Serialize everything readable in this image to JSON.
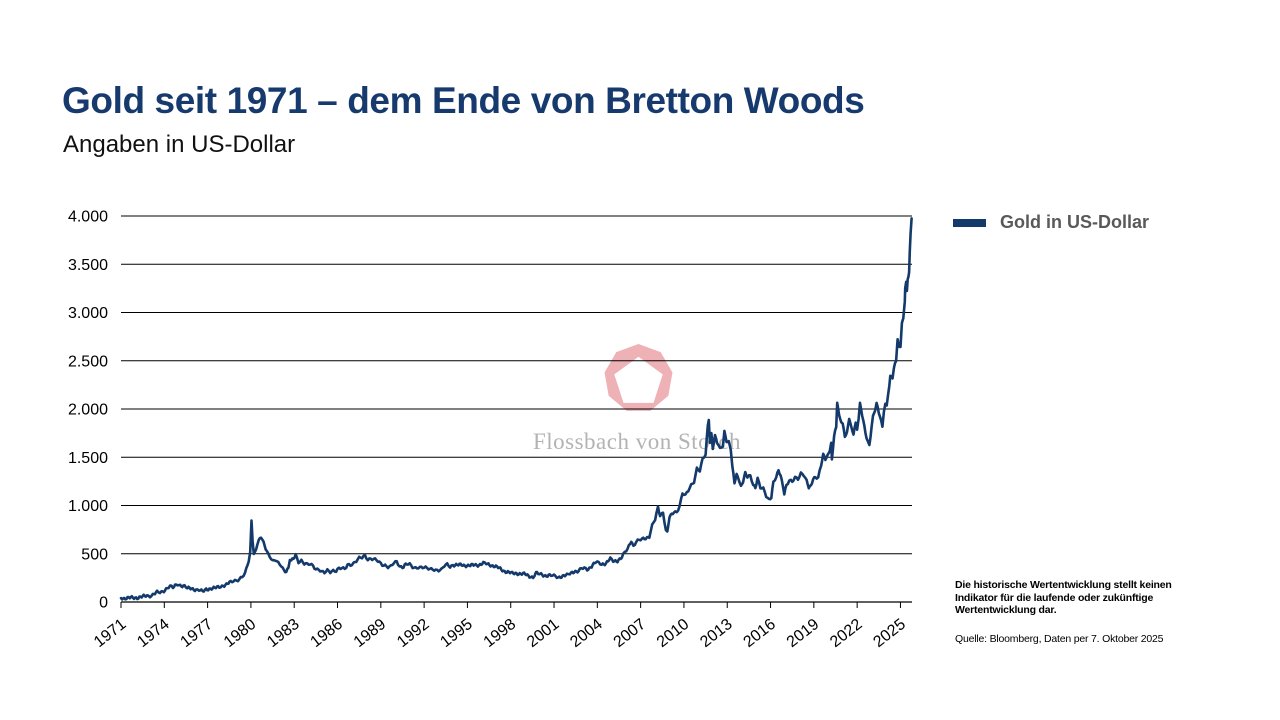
{
  "header": {
    "title": "Gold seit 1971 – dem Ende von Bretton Woods",
    "subtitle": "Angaben in US-Dollar",
    "title_color": "#173a6e"
  },
  "legend": {
    "label": "Gold in US-Dollar",
    "swatch_color": "#143a6b"
  },
  "watermark": {
    "text": "Flossbach von Storch",
    "logo": "fvs-pentagon-logo",
    "logo_color": "#eeb1b5",
    "text_color": "#b3b3b3"
  },
  "footnote": {
    "disclaimer": "Die historische Wertentwicklung stellt keinen Indikator für die laufende oder zukünftige Wertentwicklung dar.",
    "source": "Quelle: Bloomberg, Daten per 7. Oktober 2025"
  },
  "chart_data": {
    "type": "line",
    "title": "Gold seit 1971 – dem Ende von Bretton Woods",
    "subtitle": "Angaben in US-Dollar",
    "xlabel": "",
    "ylabel": "",
    "x_range": [
      1971,
      2025.8
    ],
    "y_range": [
      0,
      4000
    ],
    "grid": "horizontal",
    "legend_position": "top-right",
    "x_ticks": [
      1971,
      1974,
      1977,
      1980,
      1983,
      1986,
      1989,
      1992,
      1995,
      1998,
      2001,
      2004,
      2007,
      2010,
      2013,
      2016,
      2019,
      2022,
      2025
    ],
    "y_ticks": [
      [
        0,
        "0"
      ],
      [
        500,
        "500"
      ],
      [
        1000,
        "1.000"
      ],
      [
        1500,
        "1.500"
      ],
      [
        2000,
        "2.000"
      ],
      [
        2500,
        "2.500"
      ],
      [
        3000,
        "3.000"
      ],
      [
        3500,
        "3.500"
      ],
      [
        4000,
        "4.000"
      ]
    ],
    "series": [
      {
        "name": "Gold in US-Dollar",
        "color": "#143a6b",
        "points": [
          [
            1971.0,
            40
          ],
          [
            1971.3,
            41
          ],
          [
            1971.6,
            42
          ],
          [
            1971.9,
            43
          ],
          [
            1972.2,
            48
          ],
          [
            1972.5,
            55
          ],
          [
            1972.8,
            63
          ],
          [
            1973.0,
            65
          ],
          [
            1973.2,
            80
          ],
          [
            1973.5,
            100
          ],
          [
            1973.7,
            95
          ],
          [
            1973.9,
            105
          ],
          [
            1974.2,
            150
          ],
          [
            1974.4,
            165
          ],
          [
            1974.6,
            145
          ],
          [
            1974.9,
            185
          ],
          [
            1975.1,
            175
          ],
          [
            1975.4,
            165
          ],
          [
            1975.6,
            140
          ],
          [
            1975.9,
            140
          ],
          [
            1976.2,
            128
          ],
          [
            1976.4,
            125
          ],
          [
            1976.65,
            105
          ],
          [
            1976.9,
            132
          ],
          [
            1977.2,
            140
          ],
          [
            1977.5,
            142
          ],
          [
            1977.8,
            158
          ],
          [
            1978.0,
            168
          ],
          [
            1978.3,
            180
          ],
          [
            1978.6,
            205
          ],
          [
            1978.8,
            220
          ],
          [
            1979.0,
            228
          ],
          [
            1979.2,
            240
          ],
          [
            1979.4,
            260
          ],
          [
            1979.6,
            290
          ],
          [
            1979.75,
            380
          ],
          [
            1979.85,
            420
          ],
          [
            1979.95,
            510
          ],
          [
            1980.04,
            850
          ],
          [
            1980.12,
            650
          ],
          [
            1980.2,
            500
          ],
          [
            1980.3,
            520
          ],
          [
            1980.45,
            600
          ],
          [
            1980.55,
            630
          ],
          [
            1980.7,
            670
          ],
          [
            1980.8,
            640
          ],
          [
            1980.95,
            590
          ],
          [
            1981.1,
            530
          ],
          [
            1981.3,
            480
          ],
          [
            1981.5,
            420
          ],
          [
            1981.7,
            430
          ],
          [
            1981.9,
            400
          ],
          [
            1982.1,
            380
          ],
          [
            1982.3,
            330
          ],
          [
            1982.45,
            320
          ],
          [
            1982.6,
            350
          ],
          [
            1982.7,
            440
          ],
          [
            1982.8,
            420
          ],
          [
            1982.95,
            450
          ],
          [
            1983.1,
            490
          ],
          [
            1983.3,
            420
          ],
          [
            1983.5,
            430
          ],
          [
            1983.7,
            395
          ],
          [
            1983.9,
            385
          ],
          [
            1984.1,
            390
          ],
          [
            1984.3,
            380
          ],
          [
            1984.5,
            345
          ],
          [
            1984.7,
            340
          ],
          [
            1984.9,
            310
          ],
          [
            1985.1,
            300
          ],
          [
            1985.3,
            325
          ],
          [
            1985.5,
            315
          ],
          [
            1985.7,
            330
          ],
          [
            1985.9,
            325
          ],
          [
            1986.1,
            345
          ],
          [
            1986.3,
            345
          ],
          [
            1986.5,
            340
          ],
          [
            1986.7,
            390
          ],
          [
            1986.9,
            390
          ],
          [
            1987.1,
            400
          ],
          [
            1987.3,
            420
          ],
          [
            1987.5,
            450
          ],
          [
            1987.7,
            460
          ],
          [
            1987.9,
            485
          ],
          [
            1988.1,
            445
          ],
          [
            1988.3,
            450
          ],
          [
            1988.5,
            440
          ],
          [
            1988.7,
            430
          ],
          [
            1988.9,
            410
          ],
          [
            1989.1,
            390
          ],
          [
            1989.3,
            385
          ],
          [
            1989.5,
            365
          ],
          [
            1989.7,
            365
          ],
          [
            1989.9,
            400
          ],
          [
            1990.1,
            415
          ],
          [
            1990.3,
            375
          ],
          [
            1990.5,
            360
          ],
          [
            1990.65,
            385
          ],
          [
            1990.8,
            390
          ],
          [
            1991.0,
            385
          ],
          [
            1991.2,
            360
          ],
          [
            1991.4,
            355
          ],
          [
            1991.6,
            365
          ],
          [
            1991.8,
            360
          ],
          [
            1992.0,
            355
          ],
          [
            1992.2,
            345
          ],
          [
            1992.4,
            340
          ],
          [
            1992.6,
            345
          ],
          [
            1992.8,
            335
          ],
          [
            1993.0,
            330
          ],
          [
            1993.2,
            330
          ],
          [
            1993.4,
            370
          ],
          [
            1993.6,
            390
          ],
          [
            1993.8,
            370
          ],
          [
            1994.0,
            385
          ],
          [
            1994.3,
            380
          ],
          [
            1994.6,
            385
          ],
          [
            1994.9,
            380
          ],
          [
            1995.2,
            375
          ],
          [
            1995.5,
            385
          ],
          [
            1995.8,
            385
          ],
          [
            1996.1,
            400
          ],
          [
            1996.3,
            395
          ],
          [
            1996.6,
            385
          ],
          [
            1996.9,
            370
          ],
          [
            1997.2,
            350
          ],
          [
            1997.5,
            325
          ],
          [
            1997.8,
            310
          ],
          [
            1998.1,
            295
          ],
          [
            1998.4,
            300
          ],
          [
            1998.7,
            290
          ],
          [
            1999.0,
            287
          ],
          [
            1999.3,
            270
          ],
          [
            1999.55,
            255
          ],
          [
            1999.75,
            300
          ],
          [
            1999.9,
            290
          ],
          [
            2000.1,
            285
          ],
          [
            2000.4,
            275
          ],
          [
            2000.7,
            275
          ],
          [
            2000.9,
            270
          ],
          [
            2001.1,
            265
          ],
          [
            2001.3,
            258
          ],
          [
            2001.6,
            270
          ],
          [
            2001.9,
            275
          ],
          [
            2002.1,
            295
          ],
          [
            2002.4,
            320
          ],
          [
            2002.7,
            315
          ],
          [
            2002.9,
            345
          ],
          [
            2003.1,
            350
          ],
          [
            2003.3,
            340
          ],
          [
            2003.6,
            370
          ],
          [
            2003.9,
            410
          ],
          [
            2004.1,
            405
          ],
          [
            2004.3,
            395
          ],
          [
            2004.6,
            400
          ],
          [
            2004.9,
            445
          ],
          [
            2005.1,
            425
          ],
          [
            2005.4,
            430
          ],
          [
            2005.7,
            460
          ],
          [
            2005.9,
            510
          ],
          [
            2006.1,
            550
          ],
          [
            2006.35,
            640
          ],
          [
            2006.5,
            580
          ],
          [
            2006.7,
            625
          ],
          [
            2006.9,
            635
          ],
          [
            2007.1,
            650
          ],
          [
            2007.35,
            665
          ],
          [
            2007.6,
            680
          ],
          [
            2007.8,
            790
          ],
          [
            2008.0,
            850
          ],
          [
            2008.2,
            975
          ],
          [
            2008.35,
            900
          ],
          [
            2008.55,
            930
          ],
          [
            2008.75,
            750
          ],
          [
            2008.85,
            720
          ],
          [
            2009.0,
            880
          ],
          [
            2009.15,
            900
          ],
          [
            2009.3,
            930
          ],
          [
            2009.5,
            935
          ],
          [
            2009.7,
            1000
          ],
          [
            2009.9,
            1130
          ],
          [
            2010.1,
            1100
          ],
          [
            2010.3,
            1150
          ],
          [
            2010.5,
            1210
          ],
          [
            2010.7,
            1250
          ],
          [
            2010.9,
            1390
          ],
          [
            2011.1,
            1360
          ],
          [
            2011.3,
            1480
          ],
          [
            2011.5,
            1520
          ],
          [
            2011.65,
            1830
          ],
          [
            2011.72,
            1900
          ],
          [
            2011.8,
            1650
          ],
          [
            2011.9,
            1750
          ],
          [
            2012.0,
            1600
          ],
          [
            2012.15,
            1720
          ],
          [
            2012.3,
            1650
          ],
          [
            2012.5,
            1580
          ],
          [
            2012.7,
            1620
          ],
          [
            2012.8,
            1770
          ],
          [
            2012.95,
            1675
          ],
          [
            2013.1,
            1660
          ],
          [
            2013.25,
            1580
          ],
          [
            2013.35,
            1400
          ],
          [
            2013.5,
            1230
          ],
          [
            2013.65,
            1320
          ],
          [
            2013.8,
            1280
          ],
          [
            2013.95,
            1200
          ],
          [
            2014.1,
            1250
          ],
          [
            2014.25,
            1330
          ],
          [
            2014.4,
            1290
          ],
          [
            2014.6,
            1310
          ],
          [
            2014.8,
            1220
          ],
          [
            2014.95,
            1190
          ],
          [
            2015.1,
            1280
          ],
          [
            2015.3,
            1180
          ],
          [
            2015.5,
            1170
          ],
          [
            2015.7,
            1100
          ],
          [
            2015.9,
            1065
          ],
          [
            2016.05,
            1090
          ],
          [
            2016.2,
            1240
          ],
          [
            2016.4,
            1290
          ],
          [
            2016.55,
            1360
          ],
          [
            2016.7,
            1310
          ],
          [
            2016.85,
            1220
          ],
          [
            2016.95,
            1130
          ],
          [
            2017.1,
            1210
          ],
          [
            2017.3,
            1255
          ],
          [
            2017.5,
            1240
          ],
          [
            2017.7,
            1290
          ],
          [
            2017.9,
            1280
          ],
          [
            2018.1,
            1340
          ],
          [
            2018.3,
            1320
          ],
          [
            2018.5,
            1250
          ],
          [
            2018.65,
            1180
          ],
          [
            2018.8,
            1200
          ],
          [
            2018.95,
            1280
          ],
          [
            2019.1,
            1300
          ],
          [
            2019.3,
            1290
          ],
          [
            2019.5,
            1410
          ],
          [
            2019.65,
            1520
          ],
          [
            2019.8,
            1480
          ],
          [
            2019.95,
            1520
          ],
          [
            2020.1,
            1580
          ],
          [
            2020.2,
            1650
          ],
          [
            2020.25,
            1470
          ],
          [
            2020.4,
            1720
          ],
          [
            2020.55,
            1800
          ],
          [
            2020.62,
            2070
          ],
          [
            2020.75,
            1930
          ],
          [
            2020.9,
            1880
          ],
          [
            2021.0,
            1850
          ],
          [
            2021.15,
            1720
          ],
          [
            2021.3,
            1745
          ],
          [
            2021.45,
            1900
          ],
          [
            2021.6,
            1800
          ],
          [
            2021.75,
            1750
          ],
          [
            2021.9,
            1860
          ],
          [
            2022.0,
            1800
          ],
          [
            2022.1,
            1900
          ],
          [
            2022.2,
            2050
          ],
          [
            2022.35,
            1930
          ],
          [
            2022.5,
            1810
          ],
          [
            2022.65,
            1710
          ],
          [
            2022.75,
            1660
          ],
          [
            2022.85,
            1630
          ],
          [
            2023.0,
            1820
          ],
          [
            2023.1,
            1920
          ],
          [
            2023.25,
            1990
          ],
          [
            2023.35,
            2050
          ],
          [
            2023.5,
            1960
          ],
          [
            2023.6,
            1920
          ],
          [
            2023.75,
            1820
          ],
          [
            2023.85,
            1990
          ],
          [
            2023.95,
            2060
          ],
          [
            2024.05,
            2030
          ],
          [
            2024.15,
            2160
          ],
          [
            2024.3,
            2330
          ],
          [
            2024.45,
            2320
          ],
          [
            2024.55,
            2430
          ],
          [
            2024.7,
            2500
          ],
          [
            2024.8,
            2740
          ],
          [
            2024.9,
            2650
          ],
          [
            2025.0,
            2640
          ],
          [
            2025.1,
            2900
          ],
          [
            2025.2,
            2950
          ],
          [
            2025.3,
            3100
          ],
          [
            2025.33,
            3240
          ],
          [
            2025.4,
            3320
          ],
          [
            2025.45,
            3220
          ],
          [
            2025.5,
            3330
          ],
          [
            2025.55,
            3370
          ],
          [
            2025.6,
            3430
          ],
          [
            2025.65,
            3640
          ],
          [
            2025.7,
            3820
          ],
          [
            2025.77,
            3975
          ]
        ]
      }
    ]
  }
}
